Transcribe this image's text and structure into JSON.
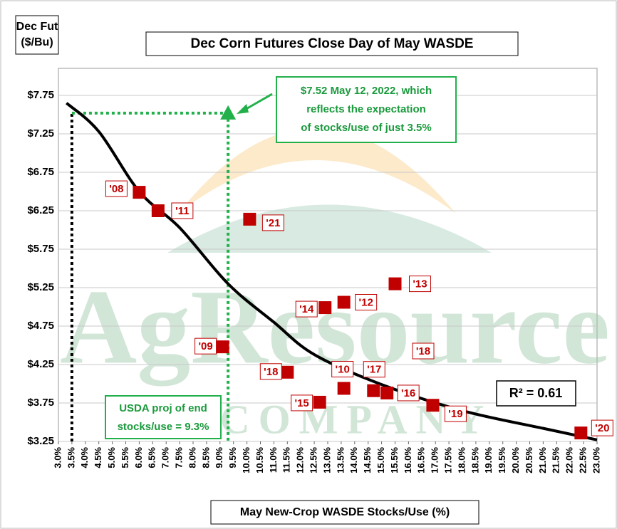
{
  "chart_data": {
    "type": "scatter",
    "title": "Dec Corn Futures Close Day of May WASDE",
    "y_axis_title": [
      "Dec Fut",
      "($/Bu)"
    ],
    "x_axis_title": "May New-Crop WASDE Stocks/Use (%)",
    "series": [
      {
        "color": "#c00000",
        "labels": [
          "'08",
          "'11",
          "'21",
          "'13",
          "'12",
          "'14",
          "'09",
          "'18",
          "'10",
          "'17",
          "'16",
          "'15",
          "'19",
          "'20"
        ],
        "x": [
          6.0,
          6.7,
          10.1,
          15.5,
          13.6,
          12.9,
          9.1,
          11.5,
          13.6,
          14.7,
          15.2,
          12.7,
          16.9,
          22.4
        ],
        "values": [
          6.49,
          6.25,
          6.14,
          5.3,
          5.06,
          4.99,
          4.48,
          4.15,
          3.94,
          3.91,
          3.88,
          3.76,
          3.72,
          3.36
        ]
      }
    ],
    "highlight": {
      "x": 9.3,
      "y": 7.52,
      "color": "#22b04b"
    },
    "reference_x": 3.5,
    "trendline": {
      "color": "#000000",
      "x": [
        3.3,
        4.5,
        6.0,
        7.5,
        9.3,
        11.0,
        12.5,
        15.0,
        18.0,
        21.0,
        23.0
      ],
      "y": [
        7.65,
        7.28,
        6.5,
        6.03,
        5.3,
        4.8,
        4.38,
        3.99,
        3.65,
        3.42,
        3.27
      ]
    },
    "annotations": {
      "highlight_note": [
        "$7.52 May 12, 2022, which",
        "reflects the expectation",
        "of stocks/use of just 3.5%"
      ],
      "usda_note": [
        "USDA proj of end",
        "stocks/use = 9.3%"
      ],
      "r_squared": "R² = 0.61",
      "extra_label": "'18"
    },
    "watermark": [
      "AgResource",
      "COMPANY"
    ],
    "xlim": [
      3.0,
      23.0
    ],
    "ylim": [
      3.25,
      7.75
    ],
    "grid": true,
    "xticks": [
      {
        "value": 3.0,
        "label": "3.0%"
      },
      {
        "value": 3.5,
        "label": "3.5%"
      },
      {
        "value": 4.0,
        "label": "4.0%"
      },
      {
        "value": 4.5,
        "label": "4.5%"
      },
      {
        "value": 5.0,
        "label": "5.0%"
      },
      {
        "value": 5.5,
        "label": "5.5%"
      },
      {
        "value": 6.0,
        "label": "6.0%"
      },
      {
        "value": 6.5,
        "label": "6.5%"
      },
      {
        "value": 7.0,
        "label": "7.0%"
      },
      {
        "value": 7.5,
        "label": "7.5%"
      },
      {
        "value": 8.0,
        "label": "8.0%"
      },
      {
        "value": 8.5,
        "label": "8.5%"
      },
      {
        "value": 9.0,
        "label": "9.0%"
      },
      {
        "value": 9.5,
        "label": "9.5%"
      },
      {
        "value": 10.0,
        "label": "10.0%"
      },
      {
        "value": 10.5,
        "label": "10.5%"
      },
      {
        "value": 11.0,
        "label": "11.0%"
      },
      {
        "value": 11.5,
        "label": "11.5%"
      },
      {
        "value": 12.0,
        "label": "12.0%"
      },
      {
        "value": 12.5,
        "label": "12.5%"
      },
      {
        "value": 13.0,
        "label": "13.0%"
      },
      {
        "value": 13.5,
        "label": "13.5%"
      },
      {
        "value": 14.0,
        "label": "14.0%"
      },
      {
        "value": 14.5,
        "label": "14.5%"
      },
      {
        "value": 15.0,
        "label": "15.0%"
      },
      {
        "value": 15.5,
        "label": "15.5%"
      },
      {
        "value": 16.0,
        "label": "16.0%"
      },
      {
        "value": 16.5,
        "label": "16.5%"
      },
      {
        "value": 17.0,
        "label": "17.0%"
      },
      {
        "value": 17.5,
        "label": "17.5%"
      },
      {
        "value": 18.0,
        "label": "18.0%"
      },
      {
        "value": 18.5,
        "label": "18.5%"
      },
      {
        "value": 19.0,
        "label": "19.0%"
      },
      {
        "value": 19.5,
        "label": "19.5%"
      },
      {
        "value": 20.0,
        "label": "20.0%"
      },
      {
        "value": 20.5,
        "label": "20.5%"
      },
      {
        "value": 21.0,
        "label": "21.0%"
      },
      {
        "value": 21.5,
        "label": "21.5%"
      },
      {
        "value": 22.0,
        "label": "22.0%"
      },
      {
        "value": 22.5,
        "label": "22.5%"
      },
      {
        "value": 23.0,
        "label": "23.0%"
      }
    ],
    "yticks": [
      {
        "value": 3.25,
        "label": "$3.25"
      },
      {
        "value": 3.75,
        "label": "$3.75"
      },
      {
        "value": 4.25,
        "label": "$4.25"
      },
      {
        "value": 4.75,
        "label": "$4.75"
      },
      {
        "value": 5.25,
        "label": "$5.25"
      },
      {
        "value": 5.75,
        "label": "$5.75"
      },
      {
        "value": 6.25,
        "label": "$6.25"
      },
      {
        "value": 6.75,
        "label": "$6.75"
      },
      {
        "value": 7.25,
        "label": "$7.25"
      },
      {
        "value": 7.75,
        "label": "$7.75"
      }
    ]
  }
}
